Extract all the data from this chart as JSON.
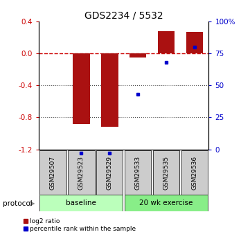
{
  "title": "GDS2234 / 5532",
  "samples": [
    "GSM29507",
    "GSM29523",
    "GSM29529",
    "GSM29533",
    "GSM29535",
    "GSM29536"
  ],
  "log2_ratio": [
    0.0,
    -0.88,
    -0.92,
    -0.05,
    0.28,
    0.27
  ],
  "percentile_rank": [
    null,
    2.0,
    2.5,
    43.0,
    68.0,
    80.0
  ],
  "groups": [
    {
      "label": "baseline",
      "start": 0,
      "end": 2,
      "color": "#bbffbb"
    },
    {
      "label": "20 wk exercise",
      "start": 3,
      "end": 5,
      "color": "#88ee88"
    }
  ],
  "ylim_left": [
    -1.2,
    0.4
  ],
  "ylim_right": [
    0,
    100
  ],
  "bar_color": "#aa1111",
  "dot_color": "#0000cc",
  "zero_line_color": "#cc0000",
  "dotted_line_color": "#444444",
  "bg_color": "#ffffff",
  "axis_label_left_color": "#cc0000",
  "axis_label_right_color": "#0000cc",
  "left_yticks": [
    0.4,
    0.0,
    -0.4,
    -0.8,
    -1.2
  ],
  "right_yticks": [
    100,
    75,
    50,
    25,
    0
  ],
  "sample_box_color": "#cccccc",
  "protocol_label": "protocol"
}
